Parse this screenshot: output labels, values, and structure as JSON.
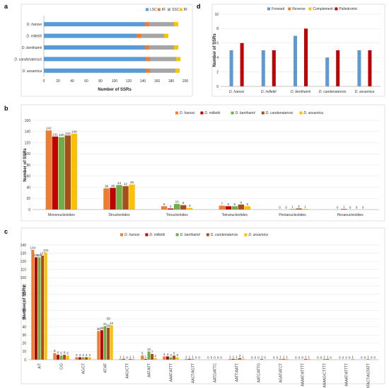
{
  "panels": {
    "a": "a",
    "b": "b",
    "c": "c",
    "d": "d"
  },
  "colors": {
    "lsc": "#5b9bd5",
    "ir": "#ed7d31",
    "ssc": "#a5a5a5",
    "ir2": "#ffc000",
    "forward": "#5b9bd5",
    "reverse": "#ed7d31",
    "complement": "#ffc000",
    "palindromic": "#c00000",
    "hancei": "#ed7d31",
    "millettii": "#c00000",
    "benthamii": "#70ad47",
    "candenatensis": "#a5501b",
    "assamica": "#ffc000"
  },
  "chart_data": [
    {
      "id": "a",
      "type": "bar",
      "orientation": "horizontal",
      "stacked": true,
      "categories": [
        "D. hancei",
        "D. millettii",
        "D. benthamii",
        "D. candenatensis",
        "D. assamica"
      ],
      "series": [
        {
          "name": "LSC",
          "color_key": "lsc",
          "values": [
            143,
            131,
            143,
            144,
            144
          ]
        },
        {
          "name": "IR",
          "color_key": "ir",
          "values": [
            6,
            7,
            6,
            6,
            6
          ]
        },
        {
          "name": "SSC",
          "color_key": "ssc",
          "values": [
            35,
            32,
            35,
            37,
            36
          ]
        },
        {
          "name": "IR",
          "color_key": "ir2",
          "values": [
            6,
            6,
            6,
            6,
            6
          ]
        }
      ],
      "xlabel": "Number of SSRs",
      "xlim": [
        0,
        200
      ],
      "xticks": [
        0,
        20,
        40,
        60,
        80,
        100,
        120,
        140,
        160,
        180,
        200
      ],
      "legend_position": "top-right",
      "grid": false
    },
    {
      "id": "d",
      "type": "bar",
      "categories": [
        "D. hancei",
        "D. millettii",
        "D. benthamii",
        "D. candenatensis",
        "D. assamica"
      ],
      "series": [
        {
          "name": "Forward",
          "color_key": "forward",
          "values": [
            5,
            5,
            7,
            4,
            5
          ]
        },
        {
          "name": "Reverse",
          "color_key": "reverse",
          "values": [
            0,
            0,
            0,
            0,
            0
          ]
        },
        {
          "name": "Complement",
          "color_key": "complement",
          "values": [
            0,
            0,
            0,
            0,
            0
          ]
        },
        {
          "name": "Palindromic",
          "color_key": "palindromic",
          "values": [
            6,
            5,
            8,
            5,
            5
          ]
        }
      ],
      "ylabel": "Number of SSRs",
      "ylim": [
        0,
        10
      ],
      "yticks": [
        0,
        2,
        4,
        6,
        8,
        10
      ],
      "legend_position": "top",
      "grid": true
    },
    {
      "id": "b",
      "type": "bar",
      "categories": [
        "Mononucleotides",
        "Dinucleotides",
        "Trinucleotides",
        "Tetranucleotides",
        "Pentanucleotides",
        "Hexanucleotides"
      ],
      "series": [
        {
          "name": "D. hancei",
          "color_key": "hancei",
          "values": [
            142,
            38,
            6,
            7,
            0,
            0
          ]
        },
        {
          "name": "D. millettii",
          "color_key": "millettii",
          "values": [
            131,
            39,
            2,
            6,
            0,
            1
          ]
        },
        {
          "name": "D. benthamii",
          "color_key": "benthamii",
          "values": [
            130,
            44,
            10,
            6,
            1,
            0
          ]
        },
        {
          "name": "D. candenatensis",
          "color_key": "candenatensis",
          "values": [
            133,
            42,
            8,
            9,
            2,
            0
          ]
        },
        {
          "name": "D. assamica",
          "color_key": "assamica",
          "values": [
            136,
            45,
            3,
            6,
            1,
            0
          ]
        }
      ],
      "ylabel": "Number of SSRs",
      "ylim": [
        0,
        160
      ],
      "yticks": [
        0,
        20,
        40,
        60,
        80,
        100,
        120,
        140,
        160
      ],
      "legend_position": "top-right",
      "grid": true
    },
    {
      "id": "c",
      "type": "bar",
      "categories": [
        "A/T",
        "C/G",
        "AG/CT",
        "AT/AT",
        "AAG/CTT",
        "AAT/ATT",
        "AAAT/ATTT",
        "AACT/AGTT",
        "AATG/ATTC",
        "AATT/AATT",
        "AATC/ATTG",
        "AGAT/ATCT",
        "AAAAT/ATTTT",
        "AAAAG/CTTTT",
        "AAAAT/ATTTT",
        "AATACT/AGTATT"
      ],
      "series": [
        {
          "name": "D. hancei",
          "color_key": "hancei",
          "values": [
            134,
            8,
            3,
            35,
            1,
            5,
            4,
            1,
            0,
            1,
            0,
            0,
            0,
            0,
            0,
            0
          ]
        },
        {
          "name": "D. millettii",
          "color_key": "millettii",
          "values": [
            125,
            6,
            3,
            36,
            1,
            1,
            4,
            1,
            0,
            1,
            0,
            0,
            0,
            0,
            0,
            0
          ]
        },
        {
          "name": "D. benthamii",
          "color_key": "benthamii",
          "values": [
            125,
            5,
            3,
            41,
            0,
            10,
            3,
            1,
            0,
            1,
            0,
            1,
            0,
            1,
            0,
            1
          ]
        },
        {
          "name": "D. candenatensis",
          "color_key": "candenatensis",
          "values": [
            127,
            6,
            3,
            39,
            1,
            7,
            5,
            0,
            0,
            2,
            1,
            1,
            1,
            1,
            0,
            0
          ]
        },
        {
          "name": "D. assamica",
          "color_key": "assamica",
          "values": [
            131,
            5,
            3,
            42,
            1,
            2,
            3,
            0,
            0,
            1,
            0,
            1,
            1,
            0,
            1,
            0
          ]
        }
      ],
      "annotations": [
        {
          "category": "AT/AT",
          "text": "39"
        }
      ],
      "ylabel": "Number of SSRs",
      "ylim": [
        0,
        140
      ],
      "yticks": [
        0,
        10,
        20,
        30,
        40,
        50,
        60,
        70,
        80,
        90,
        100,
        110,
        120,
        130,
        140
      ],
      "legend_position": "top",
      "grid": true
    }
  ]
}
